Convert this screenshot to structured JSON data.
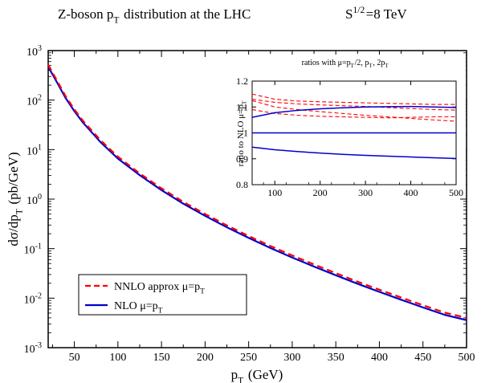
{
  "main_chart": {
    "title": "Z-boson p_T distribution at the LHC",
    "energy_label": "S^1/2=8 TeV",
    "xlabel": "p_T (GeV)",
    "ylabel": "dσ/dp_T (pb/GeV)",
    "legend": [
      {
        "text": "NNLO approx  μ=p_T",
        "color": "#ff0000",
        "style": "dashed"
      },
      {
        "text": "NLO  μ=p_T",
        "color": "#0000cc",
        "style": "solid"
      }
    ]
  },
  "inset_chart": {
    "title": "ratios with μ=p_T/2, p_T, 2p_T",
    "ylabel": "ratio to NLO μ=p_T"
  },
  "colors": {
    "nnlo": "#ff0000",
    "nlo": "#0000cc",
    "axes": "#000000"
  },
  "chart_data": [
    {
      "type": "line",
      "scale": {
        "y": "log"
      },
      "xlim": [
        20,
        500
      ],
      "ylim": [
        0.001,
        1000
      ],
      "x_ticks": [
        50,
        100,
        150,
        200,
        250,
        300,
        350,
        400,
        450,
        500
      ],
      "y_ticks": [
        0.001,
        0.01,
        0.1,
        1,
        10,
        100,
        1000
      ],
      "y_tick_labels": [
        {
          "base": "10",
          "exp": "-3"
        },
        {
          "base": "10",
          "exp": "-2"
        },
        {
          "base": "10",
          "exp": "-1"
        },
        {
          "base": "10",
          "exp": "0"
        },
        {
          "base": "10",
          "exp": "1"
        },
        {
          "base": "10",
          "exp": "2"
        },
        {
          "base": "10",
          "exp": "3"
        }
      ],
      "grid": false,
      "legend_position": "bottom-left",
      "x": [
        20,
        25,
        30,
        40,
        50,
        60,
        80,
        100,
        125,
        150,
        175,
        200,
        225,
        250,
        275,
        300,
        325,
        350,
        375,
        400,
        425,
        450,
        475,
        500
      ],
      "series": [
        {
          "name": "NNLO approx μ=p_T",
          "values": [
            520,
            360,
            250,
            120,
            65,
            38,
            15.5,
            7.2,
            3.3,
            1.65,
            0.88,
            0.5,
            0.295,
            0.18,
            0.113,
            0.073,
            0.048,
            0.032,
            0.0215,
            0.0148,
            0.0103,
            0.0072,
            0.0051,
            0.004
          ]
        },
        {
          "name": "NLO μ=p_T",
          "values": [
            470,
            330,
            230,
            110,
            60,
            35,
            14.2,
            6.6,
            3.05,
            1.52,
            0.81,
            0.46,
            0.27,
            0.165,
            0.103,
            0.066,
            0.0435,
            0.029,
            0.0195,
            0.0134,
            0.0093,
            0.0065,
            0.0046,
            0.0036
          ]
        }
      ]
    },
    {
      "type": "line",
      "xlim": [
        50,
        500
      ],
      "ylim": [
        0.8,
        1.2
      ],
      "x_ticks": [
        100,
        200,
        300,
        400,
        500
      ],
      "y_ticks": [
        0.8,
        0.9,
        1.0,
        1.1,
        1.2
      ],
      "y_tick_labels": [
        "0.8",
        "0.9",
        "1",
        "1.1",
        "1.2"
      ],
      "grid": false,
      "x": [
        50,
        100,
        150,
        200,
        250,
        300,
        350,
        400,
        450,
        500
      ],
      "series": [
        {
          "color": "#ff0000",
          "dash": "5,3",
          "values": [
            1.15,
            1.13,
            1.123,
            1.12,
            1.118,
            1.116,
            1.114,
            1.112,
            1.11,
            1.11
          ]
        },
        {
          "color": "#ff0000",
          "dash": "5,3",
          "values": [
            1.13,
            1.118,
            1.112,
            1.108,
            1.105,
            1.102,
            1.098,
            1.094,
            1.09,
            1.088
          ]
        },
        {
          "color": "#ff0000",
          "dash": "5,3",
          "values": [
            1.125,
            1.1,
            1.09,
            1.082,
            1.075,
            1.068,
            1.062,
            1.056,
            1.05,
            1.045
          ]
        },
        {
          "color": "#ff0000",
          "dash": "5,3",
          "values": [
            1.09,
            1.075,
            1.068,
            1.064,
            1.062,
            1.06,
            1.058,
            1.06,
            1.062,
            1.062
          ]
        },
        {
          "color": "#0000cc",
          "values": [
            1.06,
            1.078,
            1.087,
            1.093,
            1.097,
            1.1,
            1.101,
            1.102,
            1.1,
            1.098
          ]
        },
        {
          "color": "#0000cc",
          "values": [
            1.0,
            1.0,
            1.0,
            1.0,
            1.0,
            1.0,
            1.0,
            1.0,
            1.0,
            1.0
          ]
        },
        {
          "color": "#0000cc",
          "values": [
            0.945,
            0.935,
            0.928,
            0.922,
            0.917,
            0.913,
            0.91,
            0.907,
            0.904,
            0.901
          ]
        }
      ]
    }
  ]
}
